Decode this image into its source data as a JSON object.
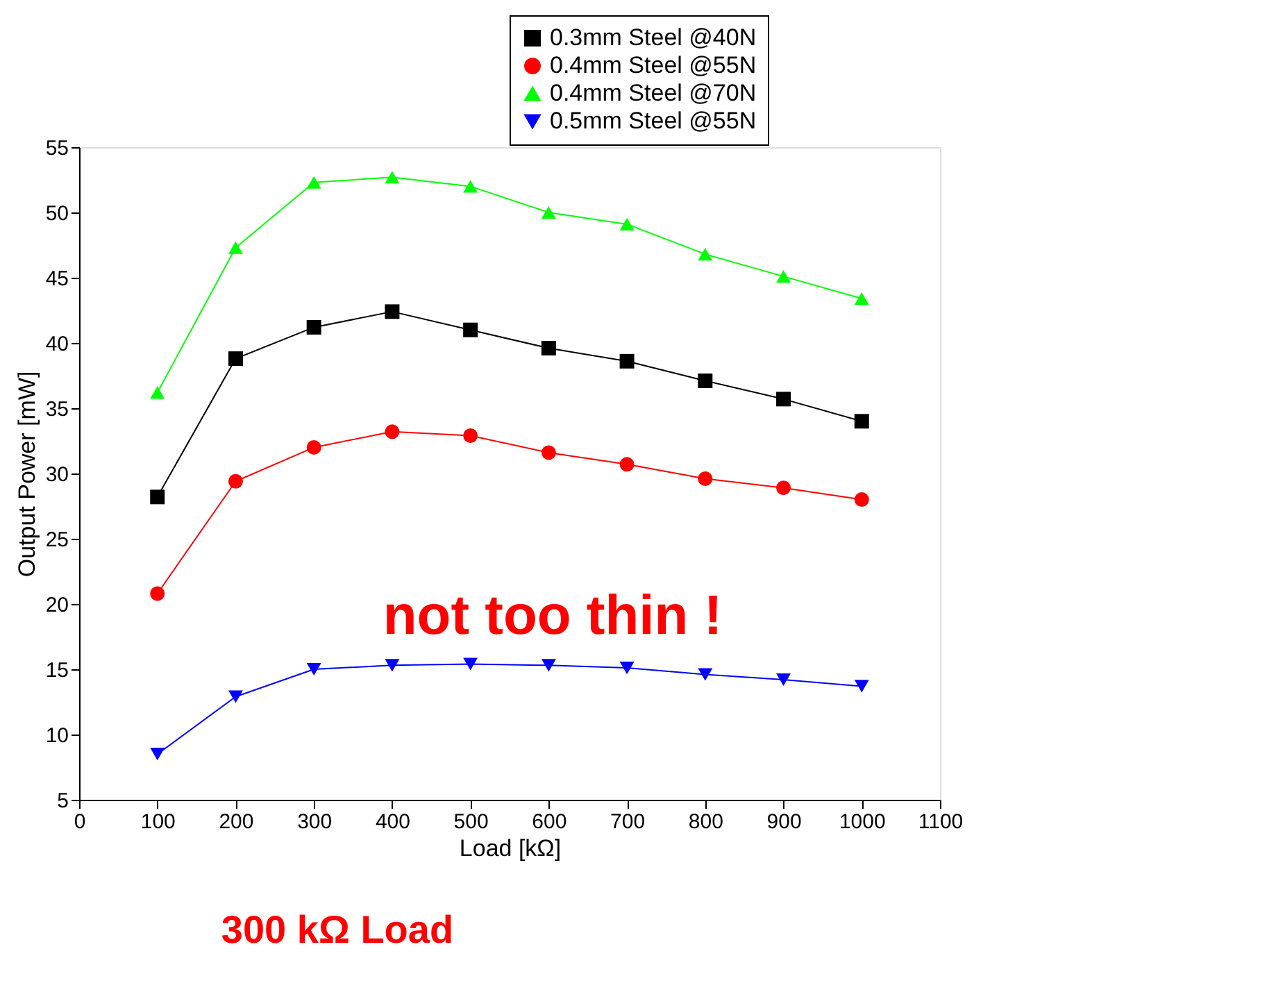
{
  "chart_data": {
    "type": "line",
    "xlabel": "Load [kΩ]",
    "ylabel": "Output Power [mW]",
    "x": [
      100,
      200,
      300,
      400,
      500,
      600,
      700,
      800,
      900,
      1000
    ],
    "series": [
      {
        "name": "0.3mm Steel @40N",
        "color": "#000000",
        "marker": "square",
        "values": [
          28.2,
          38.8,
          41.2,
          42.4,
          41.0,
          39.6,
          38.6,
          37.1,
          35.7,
          34.0
        ]
      },
      {
        "name": "0.4mm Steel @55N",
        "color": "#ff0000",
        "marker": "circle",
        "values": [
          20.8,
          29.4,
          32.0,
          33.2,
          32.9,
          31.6,
          30.7,
          29.6,
          28.9,
          28.0
        ]
      },
      {
        "name": "0.4mm Steel @70N",
        "color": "#00ff00",
        "marker": "triangle",
        "values": [
          36.2,
          47.3,
          52.3,
          52.7,
          52.0,
          50.0,
          49.1,
          46.8,
          45.1,
          43.4
        ]
      },
      {
        "name": "0.5mm Steel @55N",
        "color": "#0000ff",
        "marker": "triangle-down",
        "values": [
          8.5,
          12.9,
          15.0,
          15.3,
          15.4,
          15.3,
          15.1,
          14.6,
          14.2,
          13.7
        ]
      }
    ],
    "xlim": [
      0,
      1100
    ],
    "xticks": [
      0,
      100,
      200,
      300,
      400,
      500,
      600,
      700,
      800,
      900,
      1000,
      1100
    ],
    "ylim": [
      5,
      55
    ],
    "yticks": [
      5,
      10,
      15,
      20,
      25,
      30,
      35,
      40,
      45,
      50,
      55
    ],
    "grid": false,
    "legend": "top right",
    "line_style": "solid",
    "annotations": [
      "not too thin !",
      "300 kΩ Load"
    ]
  }
}
